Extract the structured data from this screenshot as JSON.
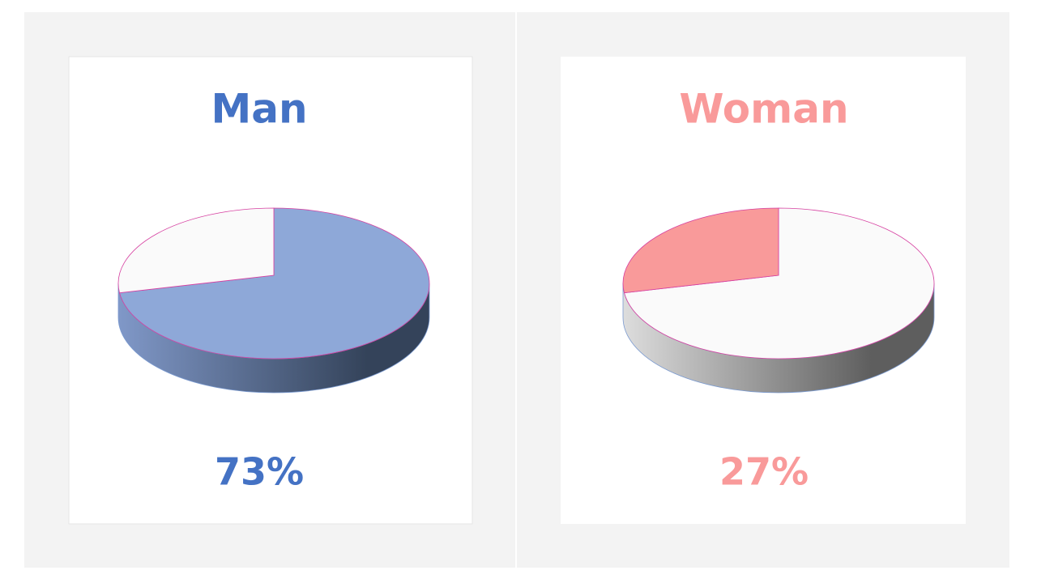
{
  "chart_data": [
    {
      "type": "pie",
      "title": "Man",
      "values": [
        73,
        27
      ],
      "colors": [
        "#8ea8d8",
        "#fafafa"
      ],
      "side_colors": [
        "#8098c8",
        "#34435a"
      ],
      "title_color": "#4472c4",
      "label": "73%"
    },
    {
      "type": "pie",
      "title": "Woman",
      "values": [
        73,
        27
      ],
      "colors": [
        "#fafafa",
        "#f99a9a"
      ],
      "side_colors": [
        "#dddddd",
        "#5e5e5e"
      ],
      "title_color": "#f99a9a",
      "label": "27%"
    }
  ]
}
